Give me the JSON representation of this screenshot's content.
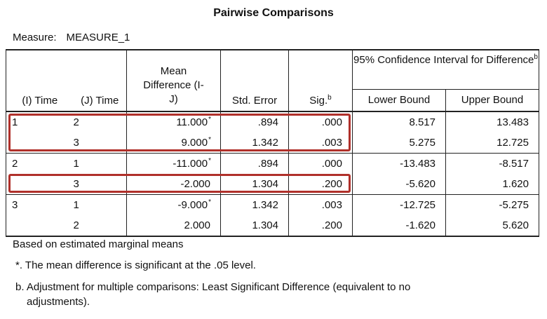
{
  "title": "Pairwise Comparisons",
  "measure_label": "Measure:",
  "measure_value": "MEASURE_1",
  "headers": {
    "i_time": "(I) Time",
    "j_time": "(J) Time",
    "mean_diff": "Mean Difference (I-J)",
    "std_error": "Std. Error",
    "sig": "Sig.",
    "sig_sup": "b",
    "ci_group": "95% Confidence Interval for Difference",
    "ci_sup": "b",
    "lower": "Lower Bound",
    "upper": "Upper Bound"
  },
  "rows": [
    {
      "i": "1",
      "j": "2",
      "mean": "11.000",
      "star": "*",
      "se": ".894",
      "sig": ".000",
      "lower": "8.517",
      "upper": "13.483"
    },
    {
      "i": "",
      "j": "3",
      "mean": "9.000",
      "star": "*",
      "se": "1.342",
      "sig": ".003",
      "lower": "5.275",
      "upper": "12.725"
    },
    {
      "i": "2",
      "j": "1",
      "mean": "-11.000",
      "star": "*",
      "se": ".894",
      "sig": ".000",
      "lower": "-13.483",
      "upper": "-8.517"
    },
    {
      "i": "",
      "j": "3",
      "mean": "-2.000",
      "star": "",
      "se": "1.304",
      "sig": ".200",
      "lower": "-5.620",
      "upper": "1.620"
    },
    {
      "i": "3",
      "j": "1",
      "mean": "-9.000",
      "star": "*",
      "se": "1.342",
      "sig": ".003",
      "lower": "-12.725",
      "upper": "-5.275"
    },
    {
      "i": "",
      "j": "2",
      "mean": "2.000",
      "star": "",
      "se": "1.304",
      "sig": ".200",
      "lower": "-1.620",
      "upper": "5.620"
    }
  ],
  "footnotes": {
    "based_on": "Based on estimated marginal means",
    "star_note": "*. The mean difference is significant at the .05 level.",
    "b_note_line1": "b. Adjustment for multiple comparisons: Least Significant Difference (equivalent to no",
    "b_note_line2": "adjustments)."
  },
  "highlight_color": "#b0302a"
}
